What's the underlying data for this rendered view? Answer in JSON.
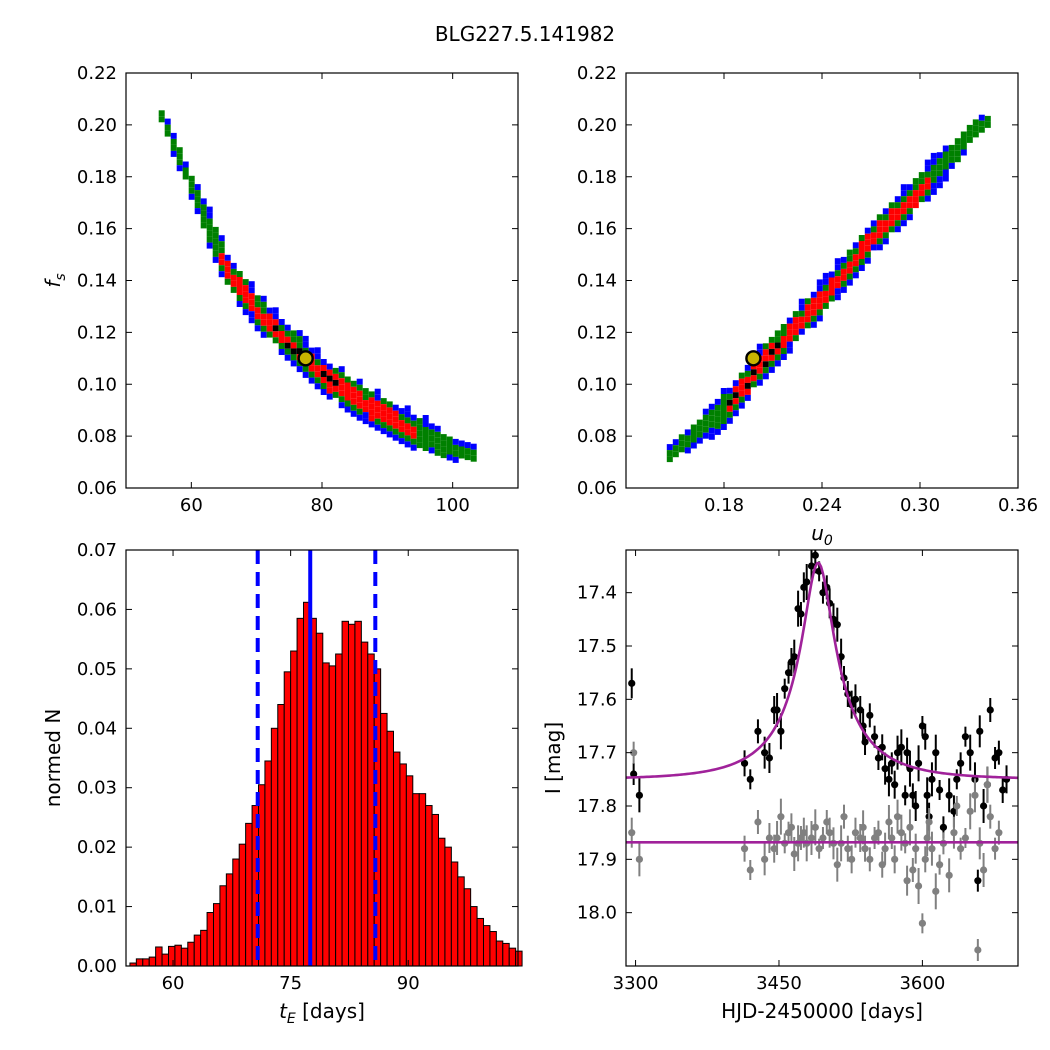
{
  "figure": {
    "title": "BLG227.5.141982"
  },
  "chart_data": [
    {
      "type": "heatmap",
      "panel": "top-left",
      "xlabel": "",
      "ylabel": "f_s",
      "xlim": [
        50,
        110
      ],
      "ylim": [
        0.06,
        0.22
      ],
      "xticks": [
        60,
        80,
        100
      ],
      "yticks": [
        0.06,
        0.08,
        0.1,
        0.12,
        0.14,
        0.16,
        0.18,
        0.2,
        0.22
      ],
      "ytick_labels": [
        "0.06",
        "0.08",
        "0.10",
        "0.12",
        "0.14",
        "0.16",
        "0.18",
        "0.20",
        "0.22"
      ],
      "xtick_labels": [
        "60",
        "80",
        "100"
      ],
      "region_colors": {
        "outer": "#0000ff",
        "middle": "#008000",
        "inner": "#ff0000",
        "core": "#000000"
      },
      "ridge": [
        [
          55,
          0.205
        ],
        [
          60,
          0.175
        ],
        [
          65,
          0.145
        ],
        [
          70,
          0.128
        ],
        [
          75,
          0.116
        ],
        [
          80,
          0.104
        ],
        [
          85,
          0.095
        ],
        [
          90,
          0.088
        ],
        [
          95,
          0.081
        ],
        [
          100,
          0.076
        ],
        [
          103,
          0.074
        ]
      ],
      "best_fit": {
        "x": 77.5,
        "y": 0.11
      },
      "marker_colors": {
        "edge": "#000000",
        "face": "#c8b400"
      }
    },
    {
      "type": "heatmap",
      "panel": "top-right",
      "xlabel": "u_0",
      "ylabel": "",
      "xlim": [
        0.12,
        0.36
      ],
      "ylim": [
        0.06,
        0.22
      ],
      "xticks": [
        0.18,
        0.24,
        0.3,
        0.36
      ],
      "xtick_labels": [
        "0.18",
        "0.24",
        "0.30",
        "0.36"
      ],
      "yticks": [
        0.06,
        0.08,
        0.1,
        0.12,
        0.14,
        0.16,
        0.18,
        0.2,
        0.22
      ],
      "ytick_labels": [
        "0.06",
        "0.08",
        "0.10",
        "0.12",
        "0.14",
        "0.16",
        "0.18",
        "0.20",
        "0.22"
      ],
      "ridge": [
        [
          0.145,
          0.074
        ],
        [
          0.18,
          0.092
        ],
        [
          0.2,
          0.108
        ],
        [
          0.24,
          0.135
        ],
        [
          0.27,
          0.158
        ],
        [
          0.3,
          0.177
        ],
        [
          0.33,
          0.198
        ],
        [
          0.34,
          0.203
        ]
      ],
      "best_fit": {
        "x": 0.198,
        "y": 0.11
      }
    },
    {
      "type": "bar",
      "panel": "bottom-left",
      "xlabel": "t_E [days]",
      "ylabel": "normed N",
      "xlim": [
        54,
        104
      ],
      "ylim": [
        0,
        0.07
      ],
      "xticks": [
        60,
        75,
        90
      ],
      "xtick_labels": [
        "60",
        "75",
        "90"
      ],
      "yticks": [
        0,
        0.01,
        0.02,
        0.03,
        0.04,
        0.05,
        0.06,
        0.07
      ],
      "ytick_labels": [
        "0.00",
        "0.01",
        "0.02",
        "0.03",
        "0.04",
        "0.05",
        "0.06",
        "0.07"
      ],
      "bin_start": 54.5,
      "bin_width": 0.82,
      "values": [
        0.0005,
        0.0012,
        0.0012,
        0.0015,
        0.0032,
        0.002,
        0.0033,
        0.0035,
        0.003,
        0.004,
        0.0052,
        0.006,
        0.009,
        0.0105,
        0.0135,
        0.0155,
        0.018,
        0.0205,
        0.024,
        0.027,
        0.0305,
        0.0345,
        0.04,
        0.044,
        0.0495,
        0.053,
        0.0585,
        0.0612,
        0.0585,
        0.056,
        0.051,
        0.0505,
        0.0525,
        0.058,
        0.0575,
        0.058,
        0.0545,
        0.0525,
        0.05,
        0.0425,
        0.0395,
        0.036,
        0.034,
        0.032,
        0.029,
        0.029,
        0.027,
        0.0255,
        0.0215,
        0.02,
        0.0175,
        0.015,
        0.013,
        0.01,
        0.008,
        0.0068,
        0.0058,
        0.0042,
        0.0038,
        0.003,
        0.0025,
        0.002,
        0.0015,
        0.0013,
        0.001,
        0.0006,
        0.0006
      ],
      "bar_color": "#ff0000",
      "lines": {
        "median": 77.5,
        "lower": 70.8,
        "upper": 85.8,
        "color": "#0000ff"
      }
    },
    {
      "type": "scatter",
      "panel": "bottom-right",
      "xlabel": "HJD-2450000 [days]",
      "ylabel": "I [mag]",
      "xlim": [
        3290,
        3700
      ],
      "ylim": [
        18.1,
        17.32
      ],
      "xticks": [
        3300,
        3450,
        3600
      ],
      "xtick_labels": [
        "3300",
        "3450",
        "3600"
      ],
      "yticks": [
        17.4,
        17.5,
        17.6,
        17.7,
        17.8,
        17.9,
        18.0
      ],
      "ytick_labels": [
        "17.4",
        "17.5",
        "17.6",
        "17.7",
        "17.8",
        "17.9",
        "18.0"
      ],
      "model": {
        "t0": 3491,
        "tE": 77.5,
        "u0": 0.198,
        "fs": 0.11,
        "baseline": 17.75,
        "color": "#a0229a"
      },
      "residual_baseline": 17.868,
      "series": [
        {
          "color": "#000000",
          "points": [
            [
              3296,
              17.57
            ],
            [
              3298,
              17.74
            ],
            [
              3304,
              17.78
            ],
            [
              3414,
              17.72
            ],
            [
              3420,
              17.75
            ],
            [
              3428,
              17.66
            ],
            [
              3435,
              17.7
            ],
            [
              3440,
              17.71
            ],
            [
              3445,
              17.62
            ],
            [
              3448,
              17.62
            ],
            [
              3452,
              17.66
            ],
            [
              3456,
              17.58
            ],
            [
              3460,
              17.55
            ],
            [
              3463,
              17.53
            ],
            [
              3466,
              17.52
            ],
            [
              3470,
              17.43
            ],
            [
              3473,
              17.44
            ],
            [
              3476,
              17.39
            ],
            [
              3479,
              17.38
            ],
            [
              3484,
              17.35
            ],
            [
              3488,
              17.33
            ],
            [
              3492,
              17.36
            ],
            [
              3496,
              17.4
            ],
            [
              3500,
              17.39
            ],
            [
              3503,
              17.42
            ],
            [
              3507,
              17.45
            ],
            [
              3511,
              17.46
            ],
            [
              3515,
              17.52
            ],
            [
              3518,
              17.56
            ],
            [
              3522,
              17.59
            ],
            [
              3526,
              17.61
            ],
            [
              3530,
              17.6
            ],
            [
              3535,
              17.62
            ],
            [
              3538,
              17.65
            ],
            [
              3540,
              17.68
            ],
            [
              3545,
              17.63
            ],
            [
              3550,
              17.67
            ],
            [
              3554,
              17.71
            ],
            [
              3558,
              17.69
            ],
            [
              3561,
              17.73
            ],
            [
              3565,
              17.75
            ],
            [
              3568,
              17.72
            ],
            [
              3571,
              17.76
            ],
            [
              3574,
              17.7
            ],
            [
              3578,
              17.69
            ],
            [
              3582,
              17.78
            ],
            [
              3584,
              17.7
            ],
            [
              3587,
              17.73
            ],
            [
              3590,
              17.78
            ],
            [
              3593,
              17.8
            ],
            [
              3596,
              17.72
            ],
            [
              3600,
              17.65
            ],
            [
              3603,
              17.67
            ],
            [
              3605,
              17.78
            ],
            [
              3607,
              17.82
            ],
            [
              3610,
              17.75
            ],
            [
              3614,
              17.7
            ],
            [
              3618,
              17.77
            ],
            [
              3622,
              17.84
            ],
            [
              3628,
              17.78
            ],
            [
              3633,
              17.81
            ],
            [
              3636,
              17.75
            ],
            [
              3640,
              17.72
            ],
            [
              3645,
              17.67
            ],
            [
              3650,
              17.7
            ],
            [
              3655,
              17.75
            ],
            [
              3660,
              17.66
            ],
            [
              3664,
              17.8
            ],
            [
              3668,
              17.76
            ],
            [
              3671,
              17.62
            ],
            [
              3676,
              17.71
            ],
            [
              3680,
              17.7
            ],
            [
              3684,
              17.77
            ],
            [
              3688,
              17.75
            ],
            [
              3658,
              17.94
            ]
          ]
        },
        {
          "color": "#808080",
          "points": [
            [
              3296,
              17.85
            ],
            [
              3298,
              17.7
            ],
            [
              3304,
              17.9
            ],
            [
              3414,
              17.88
            ],
            [
              3420,
              17.92
            ],
            [
              3428,
              17.83
            ],
            [
              3435,
              17.9
            ],
            [
              3440,
              17.86
            ],
            [
              3445,
              17.88
            ],
            [
              3448,
              17.86
            ],
            [
              3452,
              17.82
            ],
            [
              3456,
              17.87
            ],
            [
              3460,
              17.85
            ],
            [
              3463,
              17.84
            ],
            [
              3466,
              17.89
            ],
            [
              3470,
              17.87
            ],
            [
              3473,
              17.86
            ],
            [
              3476,
              17.85
            ],
            [
              3479,
              17.87
            ],
            [
              3484,
              17.86
            ],
            [
              3488,
              17.84
            ],
            [
              3492,
              17.88
            ],
            [
              3496,
              17.86
            ],
            [
              3500,
              17.83
            ],
            [
              3503,
              17.85
            ],
            [
              3507,
              17.87
            ],
            [
              3511,
              17.91
            ],
            [
              3515,
              17.87
            ],
            [
              3518,
              17.82
            ],
            [
              3522,
              17.88
            ],
            [
              3526,
              17.9
            ],
            [
              3530,
              17.85
            ],
            [
              3535,
              17.86
            ],
            [
              3538,
              17.84
            ],
            [
              3540,
              17.88
            ],
            [
              3545,
              17.9
            ],
            [
              3550,
              17.86
            ],
            [
              3554,
              17.85
            ],
            [
              3558,
              17.91
            ],
            [
              3561,
              17.88
            ],
            [
              3565,
              17.83
            ],
            [
              3568,
              17.86
            ],
            [
              3571,
              17.9
            ],
            [
              3574,
              17.82
            ],
            [
              3578,
              17.85
            ],
            [
              3582,
              17.87
            ],
            [
              3584,
              17.94
            ],
            [
              3587,
              17.84
            ],
            [
              3590,
              17.92
            ],
            [
              3593,
              17.88
            ],
            [
              3596,
              17.95
            ],
            [
              3600,
              18.02
            ],
            [
              3603,
              17.9
            ],
            [
              3605,
              17.86
            ],
            [
              3607,
              17.83
            ],
            [
              3610,
              17.88
            ],
            [
              3614,
              17.96
            ],
            [
              3618,
              17.91
            ],
            [
              3622,
              17.87
            ],
            [
              3628,
              17.93
            ],
            [
              3633,
              17.85
            ],
            [
              3636,
              17.8
            ],
            [
              3640,
              17.88
            ],
            [
              3645,
              17.86
            ],
            [
              3650,
              17.81
            ],
            [
              3655,
              17.78
            ],
            [
              3658,
              18.07
            ],
            [
              3660,
              17.87
            ],
            [
              3664,
              17.92
            ],
            [
              3668,
              17.76
            ],
            [
              3671,
              17.82
            ],
            [
              3676,
              17.88
            ],
            [
              3680,
              17.85
            ]
          ]
        }
      ]
    }
  ]
}
